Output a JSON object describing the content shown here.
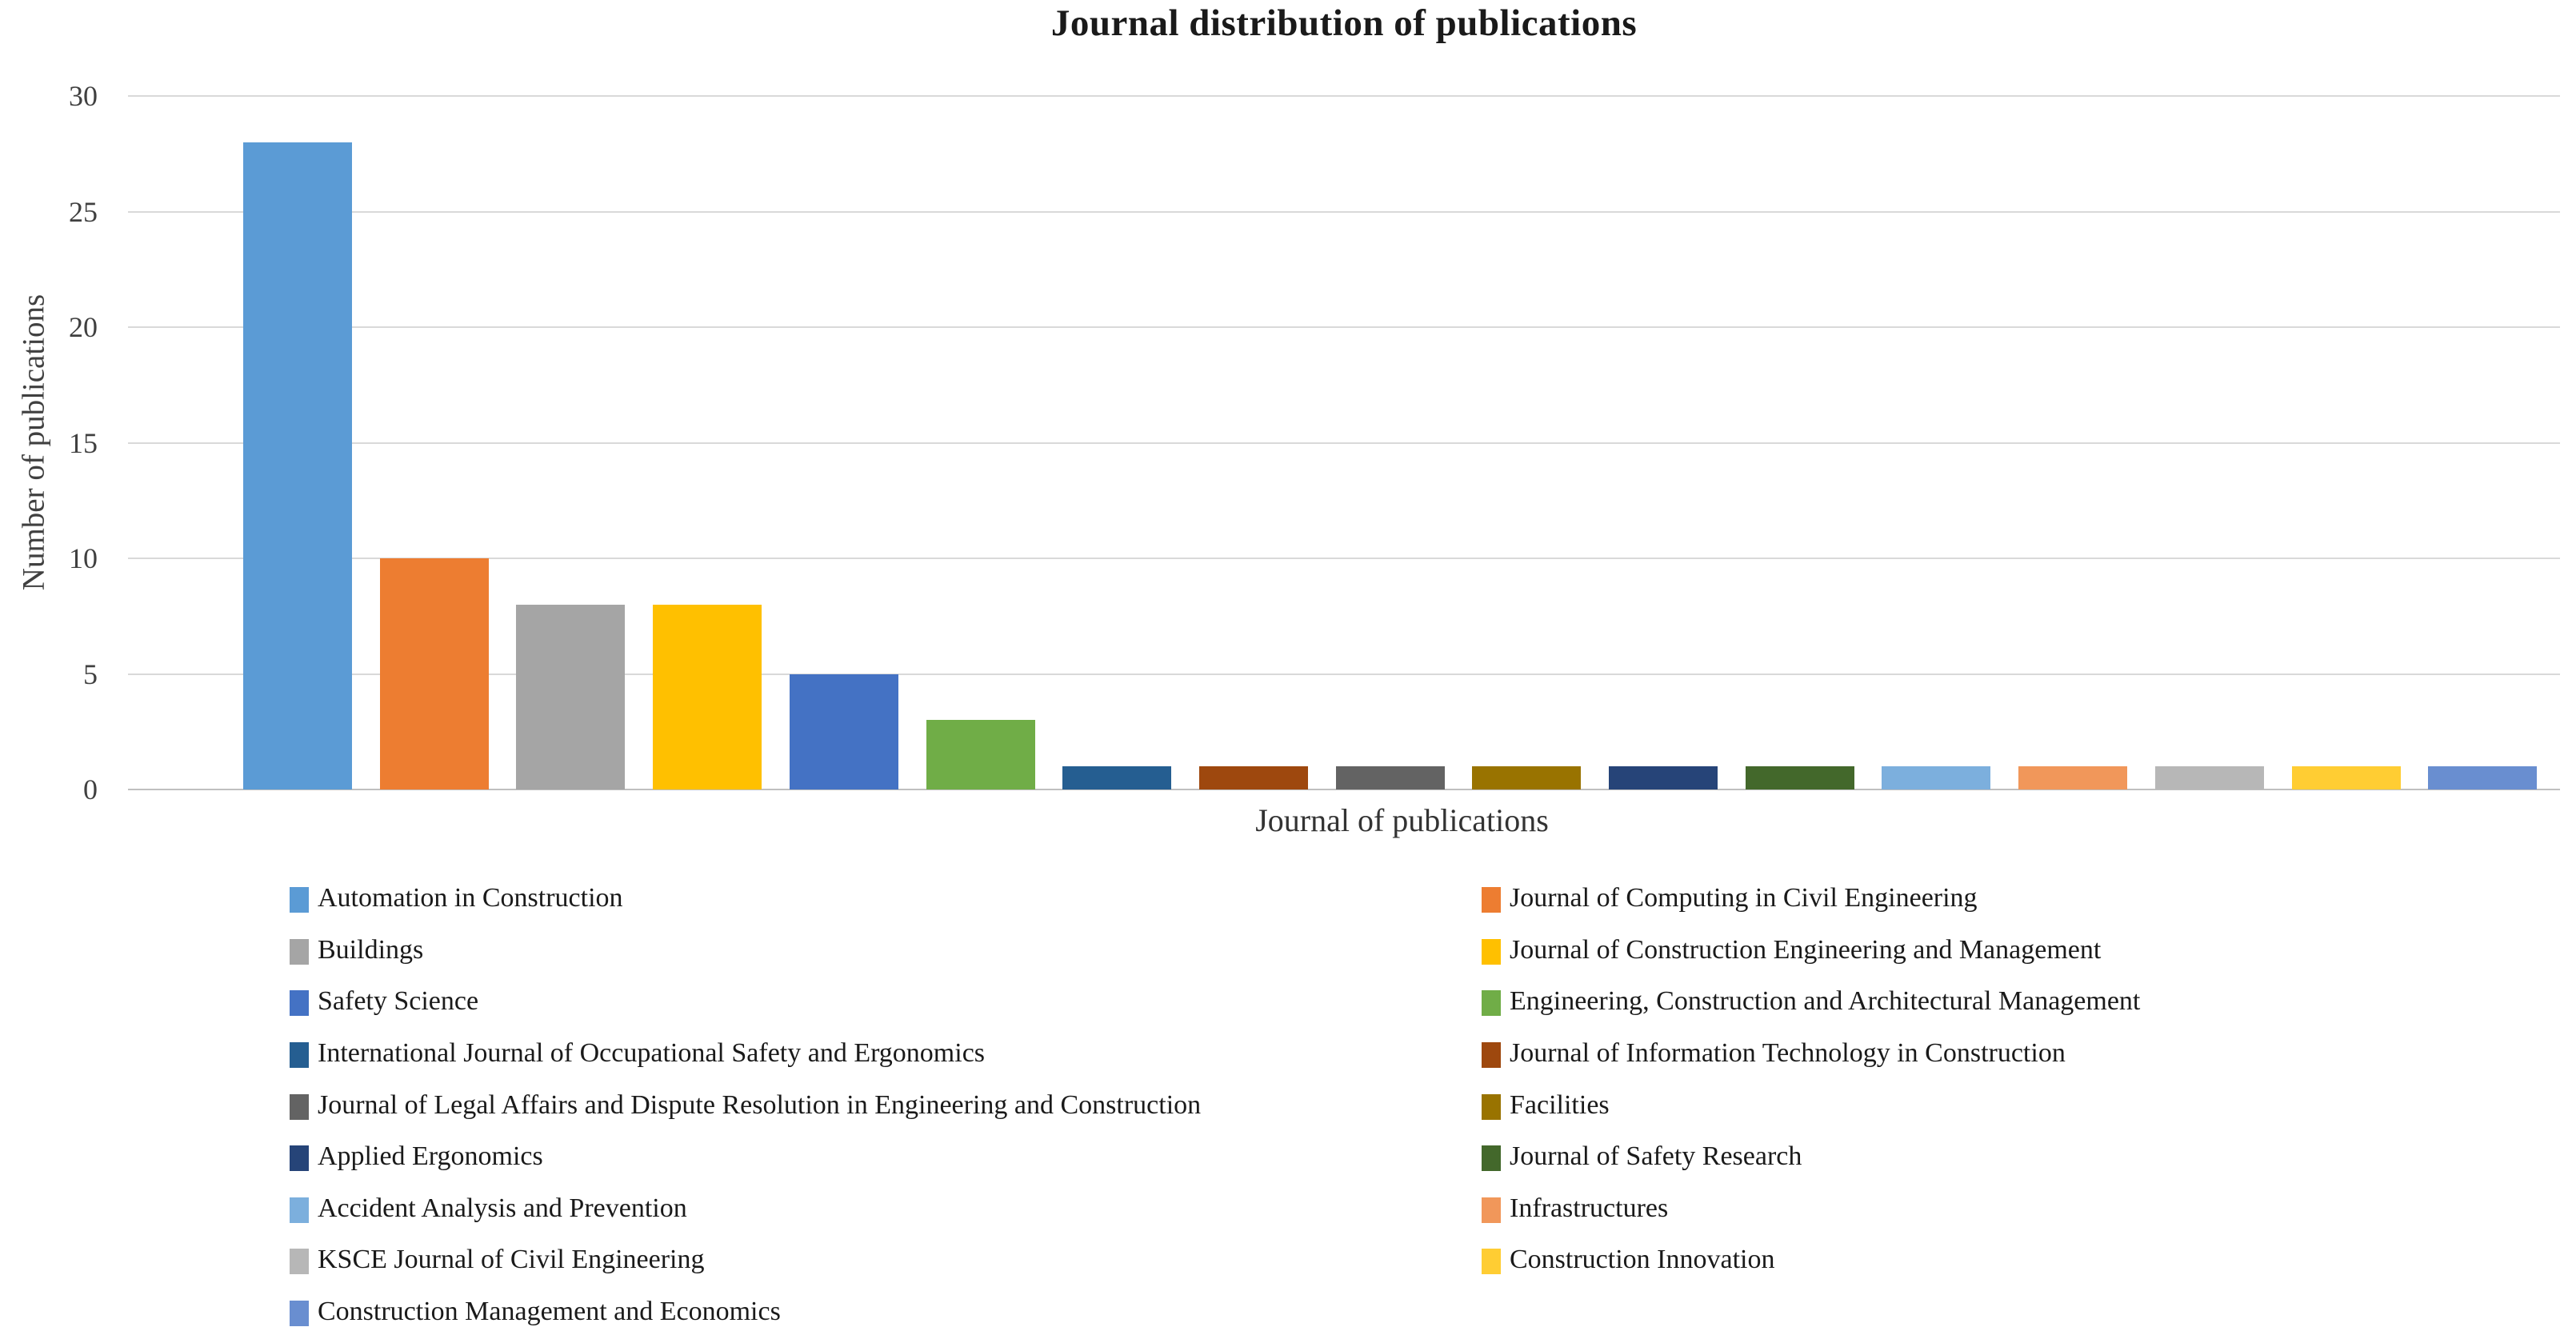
{
  "chart_data": {
    "type": "bar",
    "title": "Journal distribution of publications",
    "xlabel": "Journal of publications",
    "ylabel": "Number of publications",
    "ylim": [
      0,
      30
    ],
    "yticks": [
      0,
      5,
      10,
      15,
      20,
      25,
      30
    ],
    "grid": true,
    "legend_position": "bottom-two-columns",
    "gridline_color": "#d9d9d9",
    "baseline_color": "#bfbfbf",
    "categories": [
      "Automation in Construction",
      "Journal of Computing in Civil Engineering",
      "Buildings",
      "Journal of Construction Engineering and Management",
      "Safety Science",
      "Engineering, Construction and Architectural Management",
      "International Journal of Occupational Safety and Ergonomics",
      "Journal of Information Technology in Construction",
      "Journal of Legal Affairs and Dispute Resolution in Engineering and Construction",
      "Facilities",
      "Applied Ergonomics",
      "Journal of Safety Research",
      "Accident Analysis and Prevention",
      "Infrastructures",
      "KSCE Journal of Civil Engineering",
      "Construction Innovation",
      "Construction Management and Economics"
    ],
    "values": [
      28,
      10,
      8,
      8,
      5,
      3,
      1,
      1,
      1,
      1,
      1,
      1,
      1,
      1,
      1,
      1,
      1
    ],
    "colors": [
      "#5B9BD5",
      "#ED7D31",
      "#A5A5A5",
      "#FFC000",
      "#4472C4",
      "#70AD47",
      "#255E91",
      "#9E480E",
      "#636363",
      "#997300",
      "#264478",
      "#43682B",
      "#7CAFDD",
      "#F1975A",
      "#B7B7B7",
      "#FFCD33",
      "#698ED0"
    ]
  }
}
